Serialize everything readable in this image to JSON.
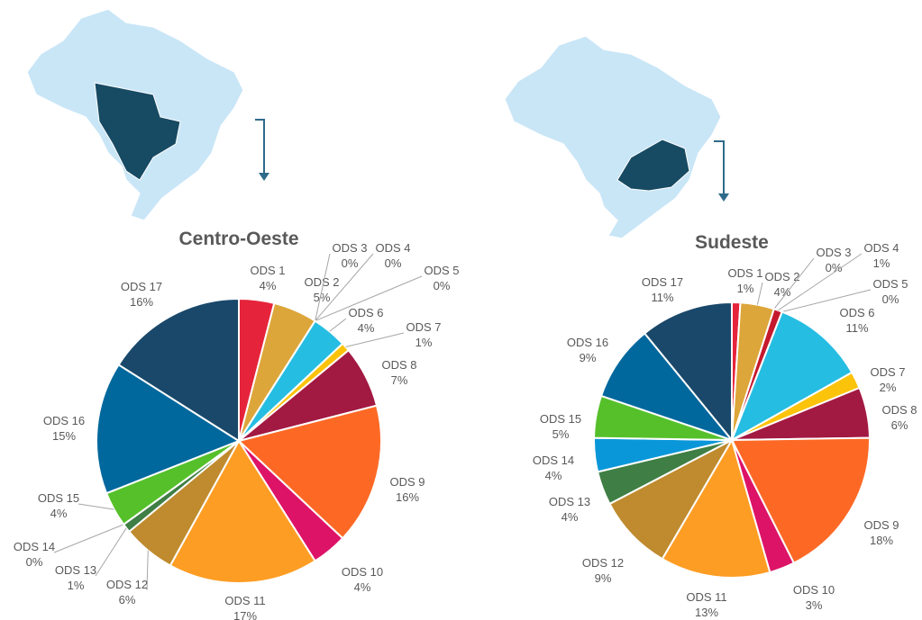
{
  "chart_data": [
    {
      "type": "pie",
      "title": "Centro-Oeste",
      "categories": [
        "ODS 1",
        "ODS 2",
        "ODS 3",
        "ODS 4",
        "ODS 5",
        "ODS 6",
        "ODS 7",
        "ODS 8",
        "ODS 9",
        "ODS 10",
        "ODS 11",
        "ODS 12",
        "ODS 13",
        "ODS 14",
        "ODS 15",
        "ODS 16",
        "ODS 17"
      ],
      "values": [
        4,
        5,
        0,
        0,
        0,
        4,
        1,
        7,
        16,
        4,
        17,
        6,
        1,
        0,
        4,
        15,
        16
      ],
      "value_labels": [
        "4%",
        "5%",
        "0%",
        "0%",
        "0%",
        "4%",
        "1%",
        "7%",
        "16%",
        "4%",
        "17%",
        "6%",
        "1%",
        "0%",
        "4%",
        "15%",
        "16%"
      ],
      "colors": [
        "#e5243b",
        "#dda63a",
        "#4c9f38",
        "#c5192d",
        "#ff3a21",
        "#26bde2",
        "#fcc30b",
        "#a21942",
        "#fd6925",
        "#dd1367",
        "#fd9d24",
        "#bf8b2e",
        "#3f7e44",
        "#0a97d9",
        "#56c02b",
        "#00689d",
        "#19486a"
      ]
    },
    {
      "type": "pie",
      "title": "Sudeste",
      "categories": [
        "ODS 1",
        "ODS 2",
        "ODS 3",
        "ODS 4",
        "ODS 5",
        "ODS 6",
        "ODS 7",
        "ODS 8",
        "ODS 9",
        "ODS 10",
        "ODS 11",
        "ODS 12",
        "ODS 13",
        "ODS 14",
        "ODS 15",
        "ODS 16",
        "ODS 17"
      ],
      "values": [
        1,
        4,
        0,
        1,
        0,
        11,
        2,
        6,
        18,
        3,
        13,
        9,
        4,
        4,
        5,
        9,
        11
      ],
      "value_labels": [
        "1%",
        "4%",
        "0%",
        "1%",
        "0%",
        "11%",
        "2%",
        "6%",
        "18%",
        "3%",
        "13%",
        "9%",
        "4%",
        "4%",
        "5%",
        "9%",
        "11%"
      ],
      "colors": [
        "#e5243b",
        "#dda63a",
        "#4c9f38",
        "#c5192d",
        "#ff3a21",
        "#26bde2",
        "#fcc30b",
        "#a21942",
        "#fd6925",
        "#dd1367",
        "#fd9d24",
        "#bf8b2e",
        "#3f7e44",
        "#0a97d9",
        "#56c02b",
        "#00689d",
        "#19486a"
      ]
    }
  ]
}
